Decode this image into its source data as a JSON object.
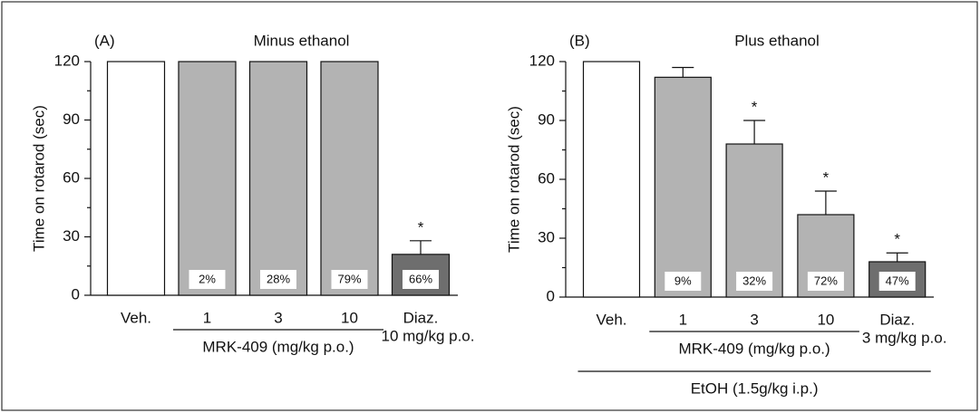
{
  "chart_data": [
    {
      "type": "bar",
      "panel_label": "(A)",
      "title": "Minus ethanol",
      "ylabel": "Time on rotarod (sec)",
      "categories": [
        "Veh.",
        "1",
        "3",
        "10",
        "Diaz."
      ],
      "category_sublabels": [
        null,
        null,
        null,
        null,
        "10 mg/kg p.o."
      ],
      "values": [
        120,
        120,
        120,
        120,
        21
      ],
      "errors": [
        null,
        null,
        null,
        null,
        7
      ],
      "colors": [
        "#ffffff",
        "#b3b3b3",
        "#b3b3b3",
        "#b3b3b3",
        "#6e6e6e"
      ],
      "bar_labels": [
        null,
        "2%",
        "28%",
        "79%",
        "66%"
      ],
      "markers": [
        null,
        null,
        null,
        null,
        "*"
      ],
      "groups": [
        {
          "label": "MRK-409 (mg/kg p.o.)",
          "from": 1,
          "to": 3
        }
      ],
      "ylim": [
        0,
        120
      ],
      "yticks": [
        0,
        30,
        60,
        90,
        120
      ],
      "minor_yticks": [
        15,
        45,
        75,
        105
      ]
    },
    {
      "type": "bar",
      "panel_label": "(B)",
      "title": "Plus ethanol",
      "ylabel": "Time on rotarod (sec)",
      "categories": [
        "Veh.",
        "1",
        "3",
        "10",
        "Diaz."
      ],
      "category_sublabels": [
        null,
        null,
        null,
        null,
        "3 mg/kg p.o."
      ],
      "values": [
        120,
        112,
        78,
        42,
        18
      ],
      "errors": [
        null,
        5,
        12,
        12,
        4.5
      ],
      "colors": [
        "#ffffff",
        "#b3b3b3",
        "#b3b3b3",
        "#b3b3b3",
        "#6e6e6e"
      ],
      "bar_labels": [
        null,
        "9%",
        "32%",
        "72%",
        "47%"
      ],
      "markers": [
        null,
        null,
        "*",
        "*",
        "*"
      ],
      "groups": [
        {
          "label": "MRK-409 (mg/kg p.o.)",
          "from": 1,
          "to": 3
        },
        {
          "label": "EtOH (1.5g/kg i.p.)",
          "from": 0,
          "to": 4
        }
      ],
      "ylim": [
        0,
        120
      ],
      "yticks": [
        0,
        30,
        60,
        90,
        120
      ],
      "minor_yticks": [
        15,
        45,
        75,
        105
      ]
    }
  ]
}
